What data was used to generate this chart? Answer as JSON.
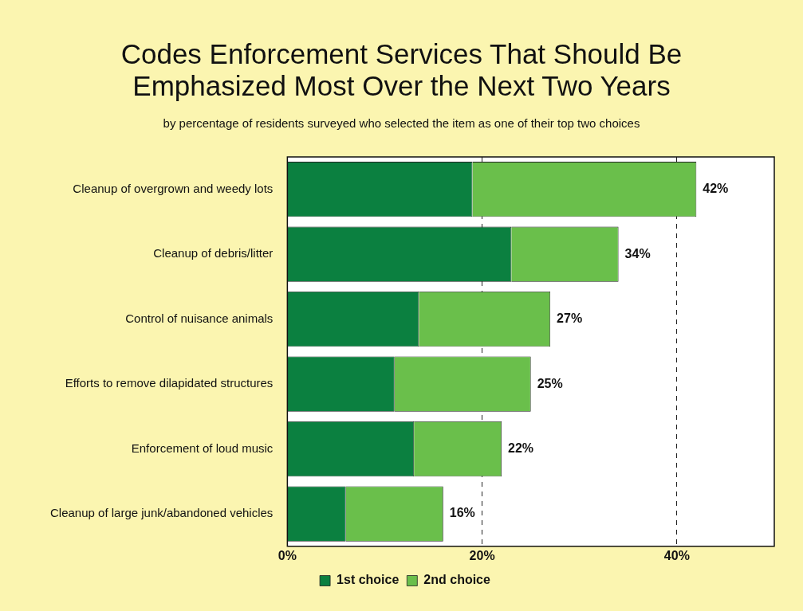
{
  "chart_data": {
    "type": "bar",
    "orientation": "horizontal",
    "stacked": true,
    "title": "Codes Enforcement Services That Should Be Emphasized Most Over the Next Two Years",
    "subtitle": "by percentage of residents surveyed who selected the item as one of their top two choices",
    "categories": [
      "Cleanup of overgrown and weedy lots",
      "Cleanup of debris/litter",
      "Control of nuisance animals",
      "Efforts to remove dilapidated structures",
      "Enforcement of loud music",
      "Cleanup of large junk/abandoned vehicles"
    ],
    "series": [
      {
        "name": "1st choice",
        "color": "#0b8040",
        "values": [
          19,
          23,
          13.5,
          11,
          13,
          6
        ]
      },
      {
        "name": "2nd choice",
        "color": "#6abf4b",
        "values": [
          23,
          11,
          13.5,
          14,
          9,
          10
        ]
      }
    ],
    "totals": [
      "42%",
      "34%",
      "27%",
      "25%",
      "22%",
      "16%"
    ],
    "xlim": [
      0,
      50
    ],
    "xticks": [
      {
        "value": 0,
        "label": "0%"
      },
      {
        "value": 20,
        "label": "20%"
      },
      {
        "value": 40,
        "label": "40%"
      }
    ],
    "grid": "x",
    "legend": "bottom"
  }
}
